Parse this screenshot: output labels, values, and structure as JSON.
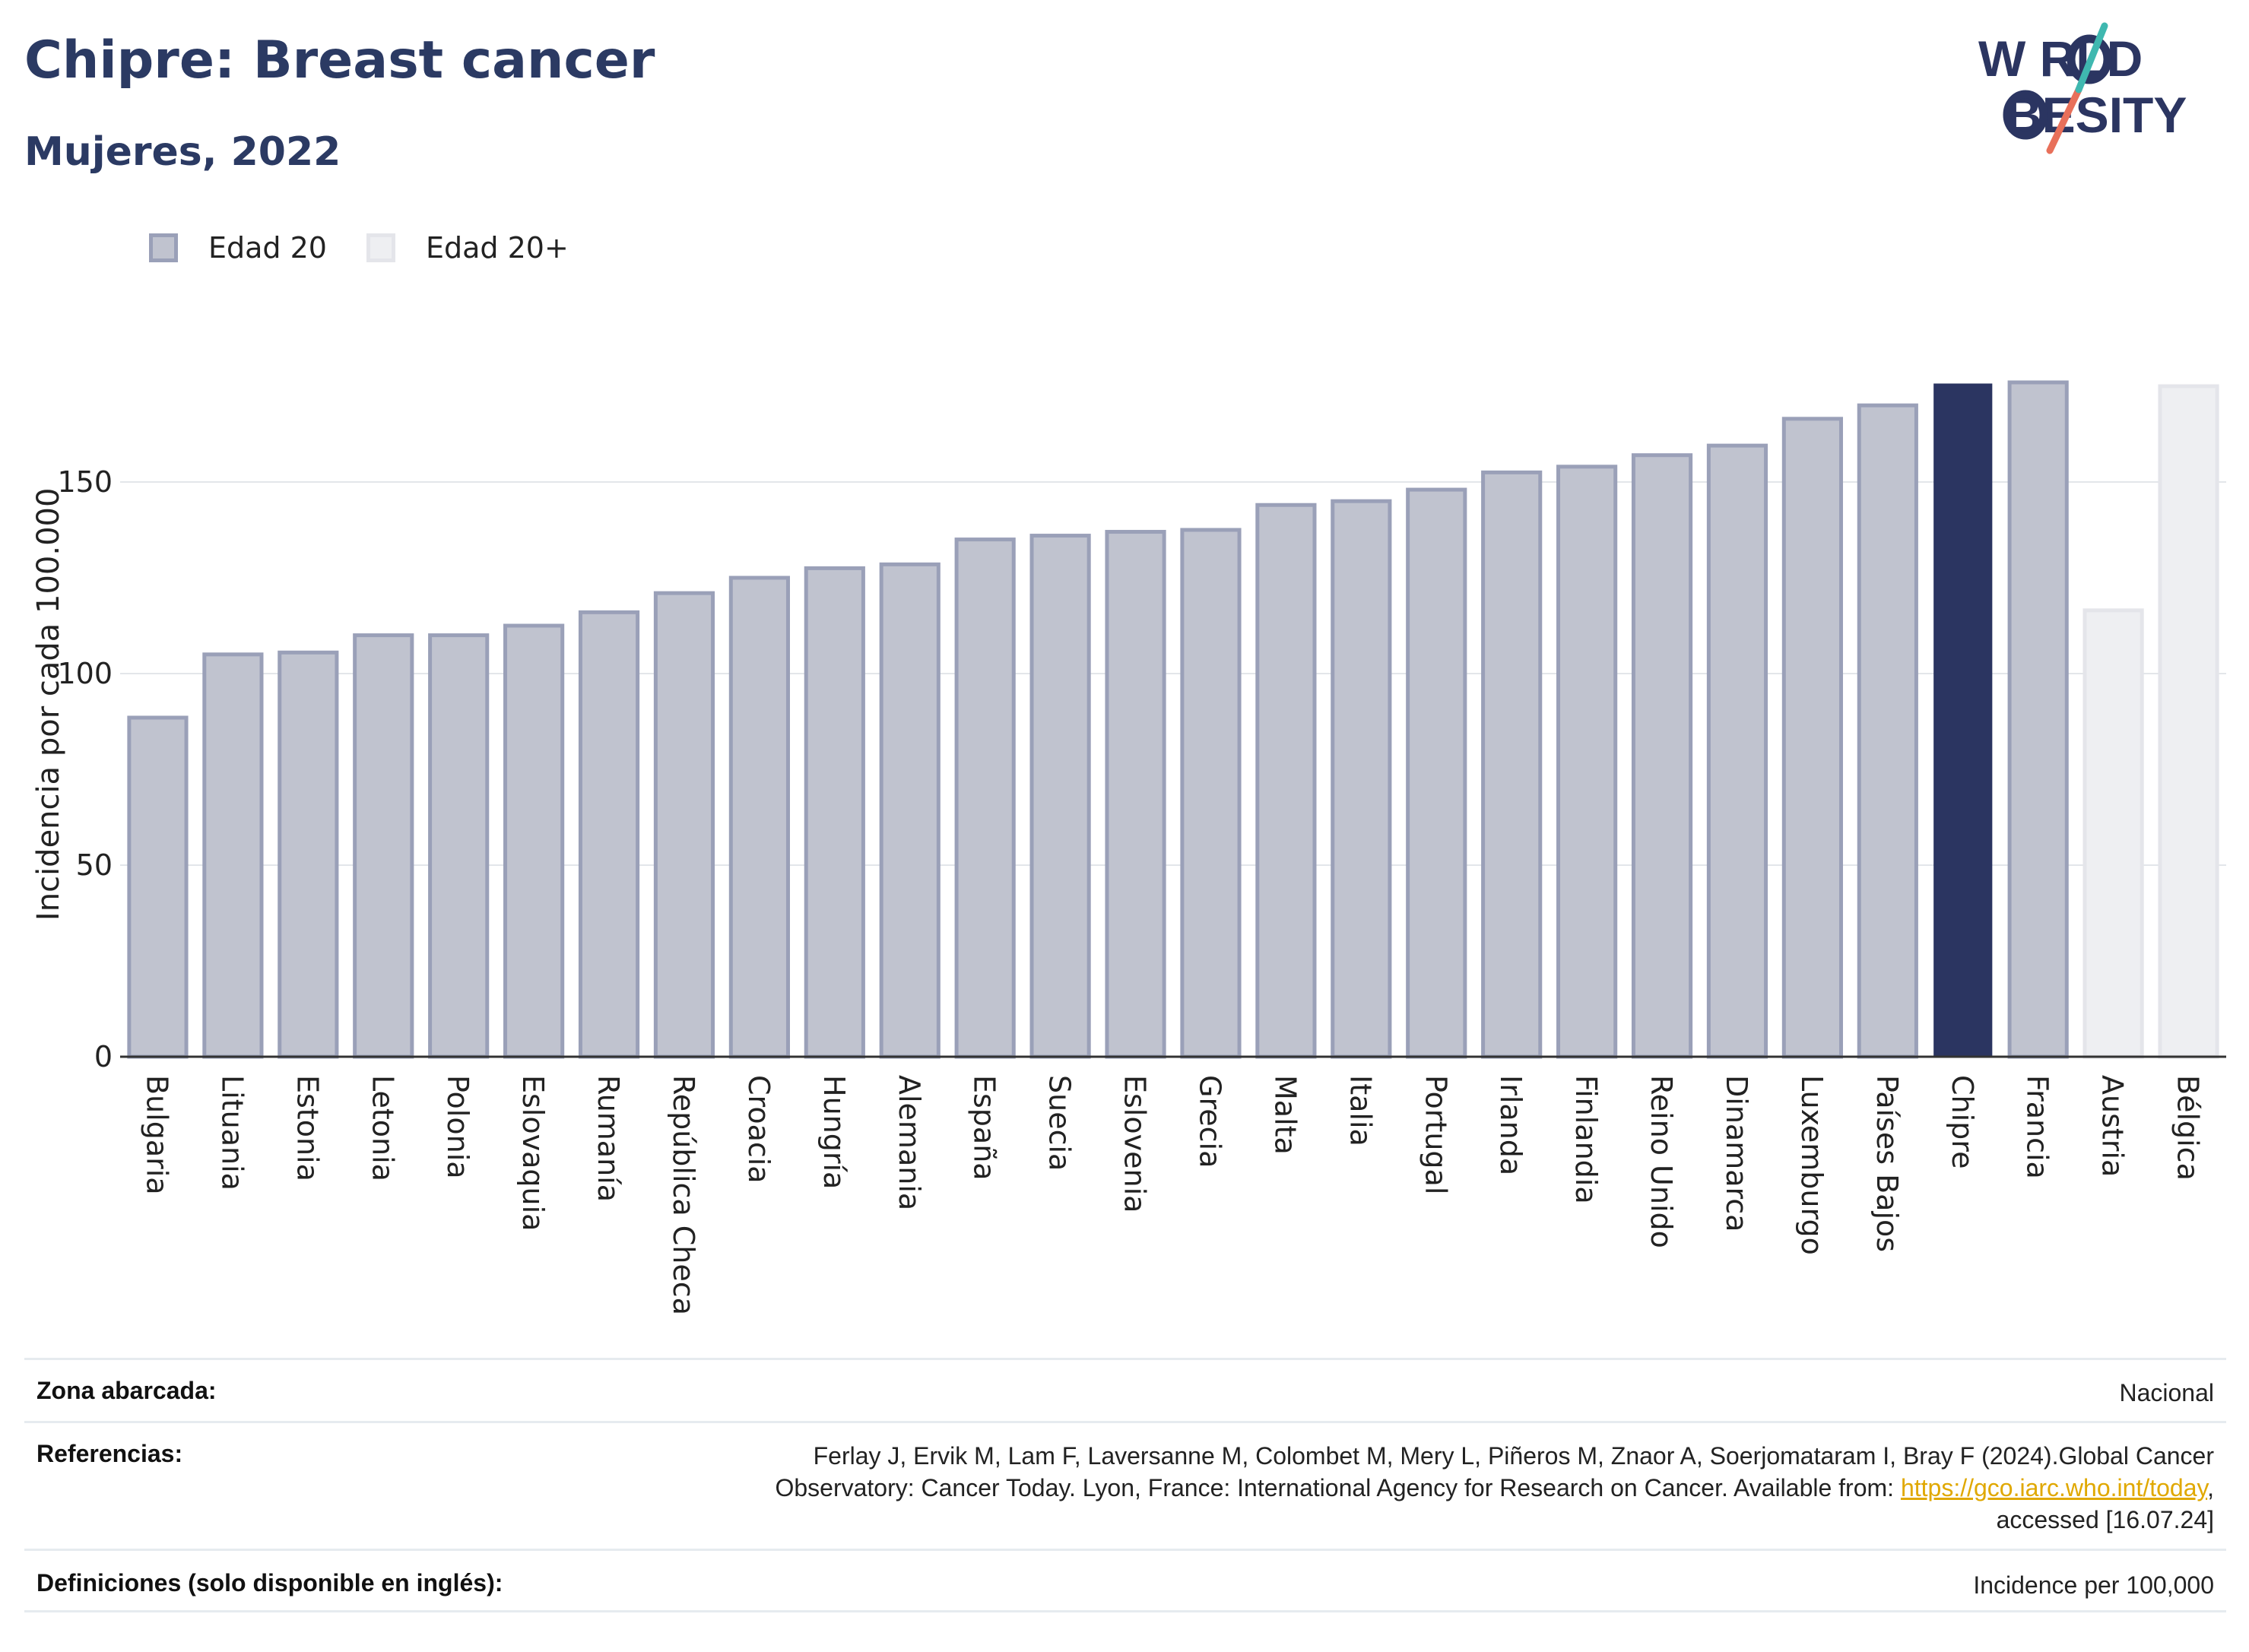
{
  "header": {
    "title": "Chipre: Breast cancer",
    "subtitle": "Mujeres, 2022"
  },
  "logo": {
    "line1": "W RLD",
    "line2": "BESITY",
    "text": "WORLD OBESITY"
  },
  "legend": {
    "items": [
      {
        "label": "Edad 20",
        "color": "#c0c3cf",
        "border": "#9aa0b8"
      },
      {
        "label": "Edad 20+",
        "color": "#eeeff2",
        "border": "#e4e5ea"
      }
    ]
  },
  "chart_data": {
    "type": "bar",
    "ylabel": "Incidencia por cada 100.000",
    "ylim": [
      0,
      185
    ],
    "yticks": [
      0,
      50,
      100,
      150
    ],
    "grid": true,
    "legend_position": "top-left",
    "categories": [
      "Bulgaria",
      "Lituania",
      "Estonia",
      "Letonia",
      "Polonia",
      "Eslovaquia",
      "Rumanía",
      "República Checa",
      "Croacia",
      "Hungría",
      "Alemania",
      "España",
      "Suecia",
      "Eslovenia",
      "Grecia",
      "Malta",
      "Italia",
      "Portugal",
      "Irlanda",
      "Finlandia",
      "Reino Unido",
      "Dinamarca",
      "Luxemburgo",
      "Países Bajos",
      "Chipre",
      "Francia",
      "Austria",
      "Bélgica"
    ],
    "values": [
      88.5,
      105,
      105.5,
      110,
      110,
      112.5,
      116,
      121,
      125,
      127.5,
      128.5,
      135,
      136,
      137,
      137.5,
      144,
      145,
      148,
      152.5,
      154,
      157,
      159.5,
      166.5,
      170,
      175.5,
      176,
      116.5,
      175
    ],
    "groups": [
      "Edad 20",
      "Edad 20",
      "Edad 20",
      "Edad 20",
      "Edad 20",
      "Edad 20",
      "Edad 20",
      "Edad 20",
      "Edad 20",
      "Edad 20",
      "Edad 20",
      "Edad 20",
      "Edad 20",
      "Edad 20",
      "Edad 20",
      "Edad 20",
      "Edad 20",
      "Edad 20",
      "Edad 20",
      "Edad 20",
      "Edad 20",
      "Edad 20",
      "Edad 20",
      "Edad 20",
      "Edad 20",
      "Edad 20",
      "Edad 20+",
      "Edad 20+"
    ],
    "highlight": "Chipre",
    "colors": {
      "edad20_fill": "#c0c3cf",
      "edad20_stroke": "#9aa0b8",
      "edad20plus_fill": "#eeeff2",
      "edad20plus_stroke": "#e4e5ea",
      "highlight_fill": "#2b3561"
    }
  },
  "info": {
    "rows": [
      {
        "label": "Zona abarcada:",
        "value": "Nacional"
      },
      {
        "label": "Referencias:",
        "value_lines": [
          "Ferlay J, Ervik M, Lam F, Laversanne M, Colombet M, Mery L, Piñeros M, Znaor A, Soerjomataram I, Bray F (2024).Global Cancer",
          "Observatory: Cancer Today. Lyon, France: International Agency for Research on Cancer. Available from: "
        ],
        "link": "https://gco.iarc.who.int/today",
        "after_link": ",",
        "last_line": "accessed [16.07.24]"
      },
      {
        "label": "Definiciones (solo disponible en inglés):",
        "value": "Incidence per 100,000"
      }
    ]
  }
}
